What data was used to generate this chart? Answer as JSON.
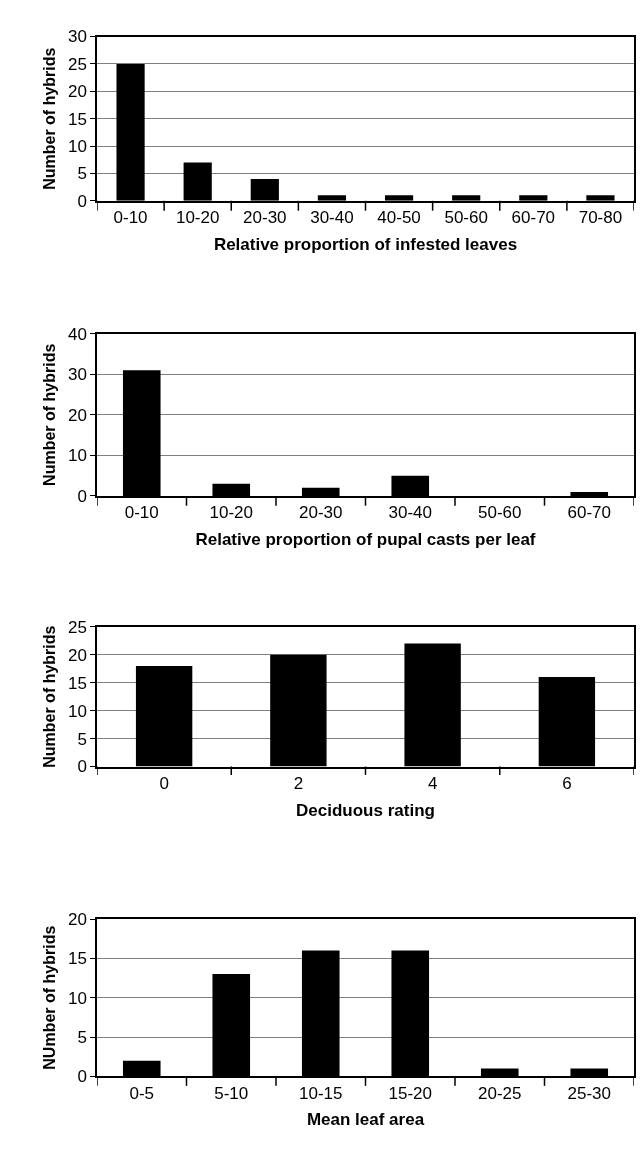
{
  "chart_data": [
    {
      "type": "bar",
      "xlabel": "Relative proportion of infested leaves",
      "ylabel": "Number of hybrids",
      "categories": [
        "0-10",
        "10-20",
        "20-30",
        "30-40",
        "40-50",
        "50-60",
        "60-70",
        "70-80"
      ],
      "values": [
        25,
        7,
        4,
        1,
        1,
        1,
        1,
        1
      ],
      "color": "#000000",
      "ylim": [
        0,
        30
      ],
      "yticks": [
        0,
        5,
        10,
        15,
        20,
        25,
        30
      ],
      "grid": "y"
    },
    {
      "type": "bar",
      "xlabel": "Relative proportion of pupal casts per leaf",
      "ylabel": "Number of hybrids",
      "categories": [
        "0-10",
        "10-20",
        "20-30",
        "30-40",
        "50-60",
        "60-70"
      ],
      "values": [
        31,
        3,
        2,
        5,
        0,
        1
      ],
      "color": "#000000",
      "ylim": [
        0,
        40
      ],
      "yticks": [
        0,
        10,
        20,
        30,
        40
      ],
      "grid": "y"
    },
    {
      "type": "bar",
      "xlabel": "Deciduous rating",
      "ylabel": "Number of hybrids",
      "categories": [
        "0",
        "2",
        "4",
        "6"
      ],
      "values": [
        18,
        20,
        22,
        16
      ],
      "color": "#000000",
      "ylim": [
        0,
        25
      ],
      "yticks": [
        0,
        5,
        10,
        15,
        20,
        25
      ],
      "grid": "y"
    },
    {
      "type": "bar",
      "xlabel": "Mean leaf area",
      "ylabel": "NUmber of hybrids",
      "categories": [
        "0-5",
        "5-10",
        "10-15",
        "15-20",
        "20-25",
        "25-30"
      ],
      "values": [
        2,
        13,
        16,
        16,
        1,
        1
      ],
      "color": "#000000",
      "ylim": [
        0,
        20
      ],
      "yticks": [
        0,
        5,
        10,
        15,
        20
      ],
      "grid": "y"
    }
  ]
}
